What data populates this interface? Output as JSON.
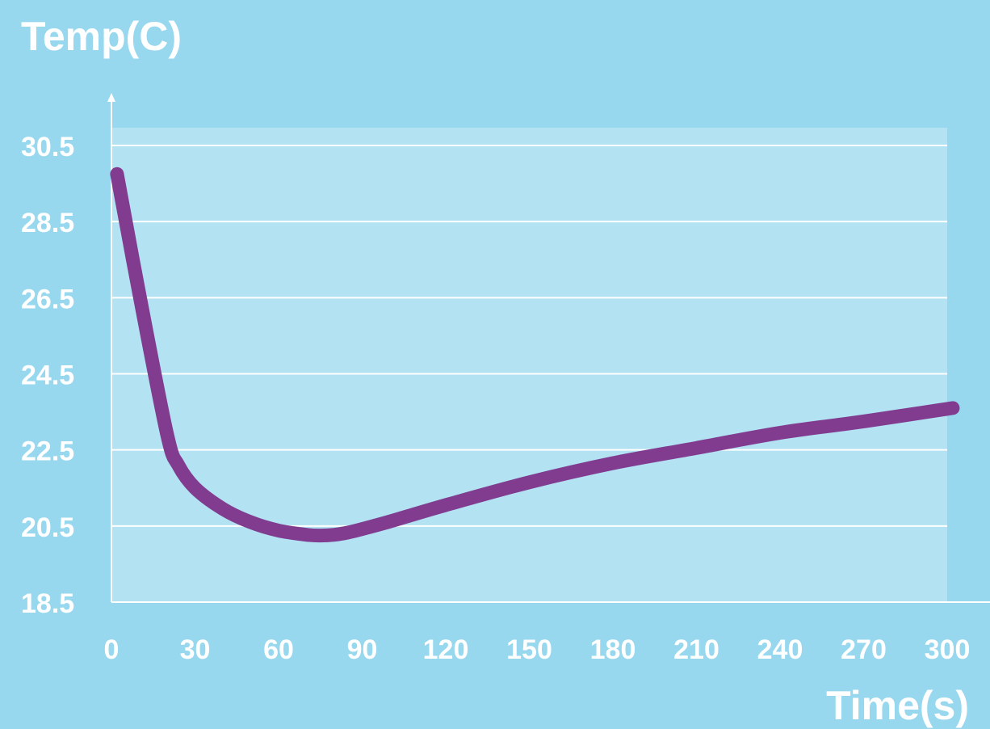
{
  "chart_data": {
    "type": "line",
    "title": "",
    "ylabel": "Temp(C)",
    "xlabel": "Time(s)",
    "x_ticks": [
      0,
      30,
      60,
      90,
      120,
      150,
      180,
      210,
      240,
      270,
      300
    ],
    "y_ticks": [
      "18.5",
      "20.5",
      "22.5",
      "24.5",
      "26.5",
      "28.5",
      "30.5"
    ],
    "xlim": [
      0,
      300
    ],
    "ylim": [
      18.5,
      30.5
    ],
    "grid": true,
    "series": [
      {
        "x": [
          2,
          10,
          20,
          24,
          30,
          40,
          50,
          60,
          70,
          75,
          80,
          85,
          90,
          100,
          120,
          150,
          180,
          210,
          240,
          270,
          302
        ],
        "y": [
          29.75,
          26.6,
          22.9,
          22.1,
          21.5,
          20.95,
          20.6,
          20.38,
          20.27,
          20.25,
          20.27,
          20.33,
          20.42,
          20.62,
          21.05,
          21.65,
          22.15,
          22.55,
          22.95,
          23.25,
          23.6
        ]
      }
    ],
    "colors": {
      "background": "#97d8ef",
      "plot_area": "#b3e2f2",
      "grid": "#ffffff",
      "line": "#813c8f",
      "text": "#ffffff"
    }
  }
}
